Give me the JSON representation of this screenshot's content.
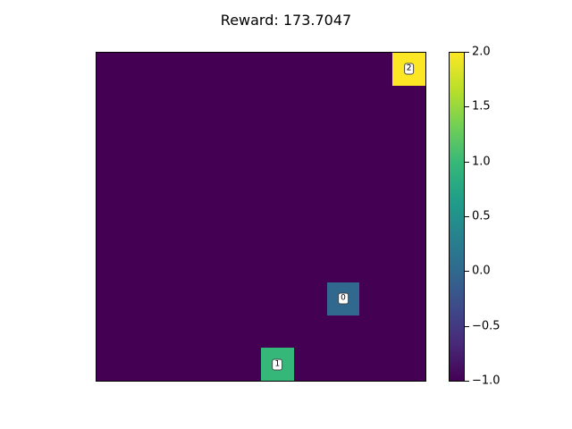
{
  "title": "Reward: 173.7047",
  "grid": {
    "rows": 10,
    "cols": 10,
    "background_value": -1.0,
    "agents": [
      {
        "label": "2",
        "row": 0,
        "col": 9,
        "value": 2.0,
        "color": "#fde725"
      },
      {
        "label": "0",
        "row": 7,
        "col": 7,
        "value": 0.0,
        "color": "#31688e"
      },
      {
        "label": "1",
        "row": 9,
        "col": 5,
        "value": 1.0,
        "color": "#35b779"
      }
    ]
  },
  "colorbar": {
    "min": -1.0,
    "max": 2.0,
    "ticks": [
      "−1.0",
      "−0.5",
      "0.0",
      "0.5",
      "1.0",
      "1.5",
      "2.0"
    ],
    "tick_values": [
      -1.0,
      -0.5,
      0.0,
      0.5,
      1.0,
      1.5,
      2.0
    ],
    "colormap": "viridis"
  }
}
